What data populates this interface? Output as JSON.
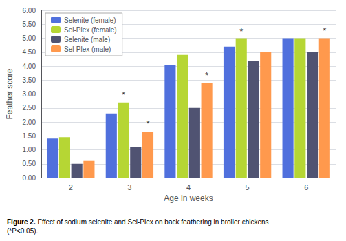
{
  "chart_data": {
    "type": "bar",
    "xlabel": "Age in weeks",
    "ylabel": "Feather score",
    "categories": [
      2,
      3,
      4,
      5,
      6
    ],
    "series": [
      {
        "name": "Selenite (female)",
        "values": [
          1.4,
          2.3,
          4.05,
          4.7,
          5.0
        ]
      },
      {
        "name": "Sel-Plex (female)",
        "values": [
          1.45,
          2.7,
          4.4,
          5.0,
          5.0
        ]
      },
      {
        "name": "Selenite (male)",
        "values": [
          0.5,
          1.1,
          2.5,
          4.2,
          4.5
        ]
      },
      {
        "name": "Sel-Plex (male)",
        "values": [
          0.6,
          1.65,
          3.4,
          4.5,
          5.0
        ]
      }
    ],
    "ylim": [
      0.0,
      6.0
    ],
    "yticks": [
      {
        "value": 0.0,
        "label": "0.00"
      },
      {
        "value": 0.5,
        "label": "0.50"
      },
      {
        "value": 1.0,
        "label": "1.00"
      },
      {
        "value": 1.5,
        "label": "1.50"
      },
      {
        "value": 2.0,
        "label": "2.00"
      },
      {
        "value": 2.5,
        "label": "2.50"
      },
      {
        "value": 3.0,
        "label": "3.00"
      },
      {
        "value": 3.5,
        "label": "3.50"
      },
      {
        "value": 4.0,
        "label": "4.00"
      },
      {
        "value": 4.5,
        "label": "4.50"
      },
      {
        "value": 5.0,
        "label": "5.00"
      },
      {
        "value": 5.5,
        "label": "5.50"
      },
      {
        "value": 6.0,
        "label": "6.00"
      }
    ],
    "grid": true,
    "legend": "upper left",
    "annotations": [
      {
        "text": "*",
        "x": 3,
        "series": "Sel-Plex (female)",
        "y": 2.78
      },
      {
        "text": "*",
        "x": 3,
        "series": "Sel-Plex (male)",
        "y": 1.75
      },
      {
        "text": "*",
        "x": 4,
        "series": "Sel-Plex (male)",
        "y": 3.48
      },
      {
        "text": "*",
        "x": 5,
        "series": "Sel-Plex (female)",
        "y": 5.05
      },
      {
        "text": "*",
        "x": 6,
        "series": "Sel-Plex (male)",
        "y": 5.08
      }
    ],
    "caption_bold": "Figure 2.",
    "caption": " Effect of sodium selenite and Sel-Plex on back feathering in broiler chickens\n(*P<0.05)."
  }
}
